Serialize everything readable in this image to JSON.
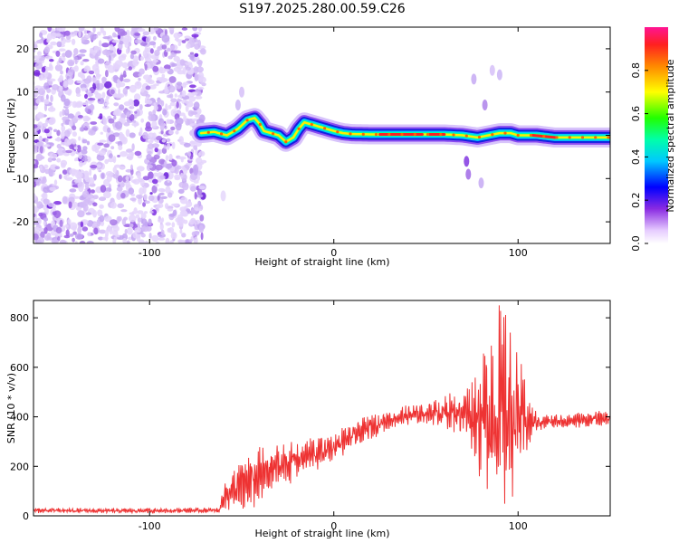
{
  "title": "S197.2025.280.00.59.C26",
  "chart_data": [
    {
      "type": "heatmap",
      "xlabel": "Height of straight line (km)",
      "ylabel": "Frequency (Hz)",
      "xlim": [
        -163,
        150
      ],
      "ylim": [
        -25,
        25
      ],
      "x_ticks": [
        -100,
        0,
        100
      ],
      "y_ticks": [
        -20,
        -10,
        0,
        10,
        20
      ],
      "noise_region_x": [
        -163,
        -72
      ],
      "ridge": {
        "x": [
          -72,
          -65,
          -58,
          -52,
          -47,
          -43,
          -40,
          -38,
          -34,
          -30,
          -26,
          -22,
          -19,
          -16,
          -12,
          -8,
          -4,
          0,
          5,
          10,
          20,
          40,
          60,
          70,
          78,
          84,
          90,
          96,
          100,
          110,
          120,
          130,
          140,
          150
        ],
        "y": [
          0.5,
          0.8,
          0.0,
          1.5,
          3.5,
          4.0,
          2.5,
          1.0,
          0.5,
          0.0,
          -1.5,
          -0.5,
          1.5,
          3.0,
          2.5,
          2.0,
          1.5,
          1.0,
          0.5,
          0.3,
          0.2,
          0.2,
          0.2,
          0.0,
          -0.5,
          0.0,
          0.5,
          0.5,
          0.0,
          0.0,
          -0.5,
          -0.5,
          -0.5,
          -0.5
        ]
      },
      "colorbar": {
        "label": "Normalized spectral amplitude",
        "ticks": [
          0.0,
          0.2,
          0.4,
          0.6,
          0.8
        ],
        "tick_labels": [
          "0.0",
          "0.2",
          "0.4",
          "0.6",
          "0.8"
        ],
        "range": [
          0,
          1
        ]
      }
    },
    {
      "type": "line",
      "xlabel": "Height of straight line (km)",
      "ylabel": "SNR (10 * v/v)",
      "xlim": [
        -163,
        150
      ],
      "ylim": [
        0,
        870
      ],
      "x_ticks": [
        -100,
        0,
        100
      ],
      "y_ticks": [
        0,
        200,
        400,
        600,
        800
      ],
      "color": "#ee3333",
      "envelope": {
        "x": [
          -163,
          -120,
          -80,
          -62,
          -60,
          -55,
          -50,
          -40,
          -30,
          -20,
          -10,
          0,
          10,
          20,
          30,
          40,
          50,
          60,
          70,
          75,
          80,
          85,
          90,
          95,
          100,
          105,
          110,
          120,
          130,
          140,
          150
        ],
        "mean": [
          22,
          20,
          22,
          22,
          80,
          100,
          120,
          160,
          200,
          230,
          250,
          280,
          320,
          360,
          390,
          405,
          415,
          420,
          420,
          410,
          400,
          420,
          420,
          420,
          400,
          380,
          380,
          380,
          385,
          390,
          395
        ],
        "amplitude": [
          10,
          10,
          10,
          10,
          60,
          80,
          110,
          110,
          90,
          80,
          70,
          60,
          50,
          50,
          40,
          40,
          40,
          60,
          100,
          150,
          250,
          380,
          420,
          380,
          250,
          120,
          40,
          30,
          30,
          30,
          30
        ]
      }
    }
  ]
}
